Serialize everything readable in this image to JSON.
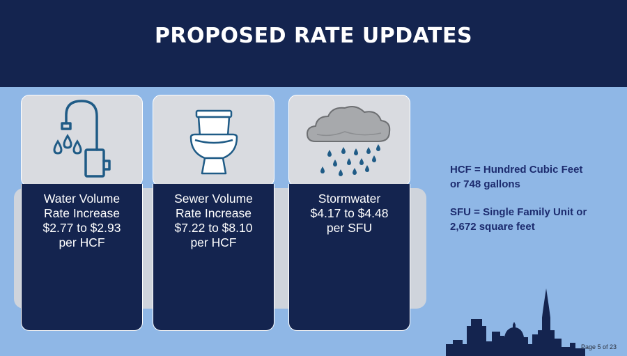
{
  "slide": {
    "title": "PROPOSED RATE UPDATES",
    "cards": [
      {
        "icon": "faucet-icon",
        "lines": [
          "Water Volume",
          "Rate Increase",
          "$2.77 to $2.93",
          "per HCF"
        ]
      },
      {
        "icon": "toilet-icon",
        "lines": [
          "Sewer Volume",
          "Rate Increase",
          "$7.22 to $8.10",
          "per HCF"
        ]
      },
      {
        "icon": "rain-cloud-icon",
        "lines": [
          "Stormwater",
          "$4.17 to $4.48",
          "per SFU"
        ]
      }
    ],
    "definitions": [
      {
        "lines": [
          "HCF = Hundred Cubic Feet",
          "or 748 gallons"
        ]
      },
      {
        "lines": [
          "SFU = Single Family Unit or",
          "2,672 square feet"
        ]
      }
    ],
    "page_label": "Page 5 of 23",
    "colors": {
      "header": "#14244f",
      "background": "#8fb7e6",
      "card_dark": "#14244f",
      "icon_blue": "#1f5b86",
      "definition_text": "#1c2b6e"
    }
  }
}
